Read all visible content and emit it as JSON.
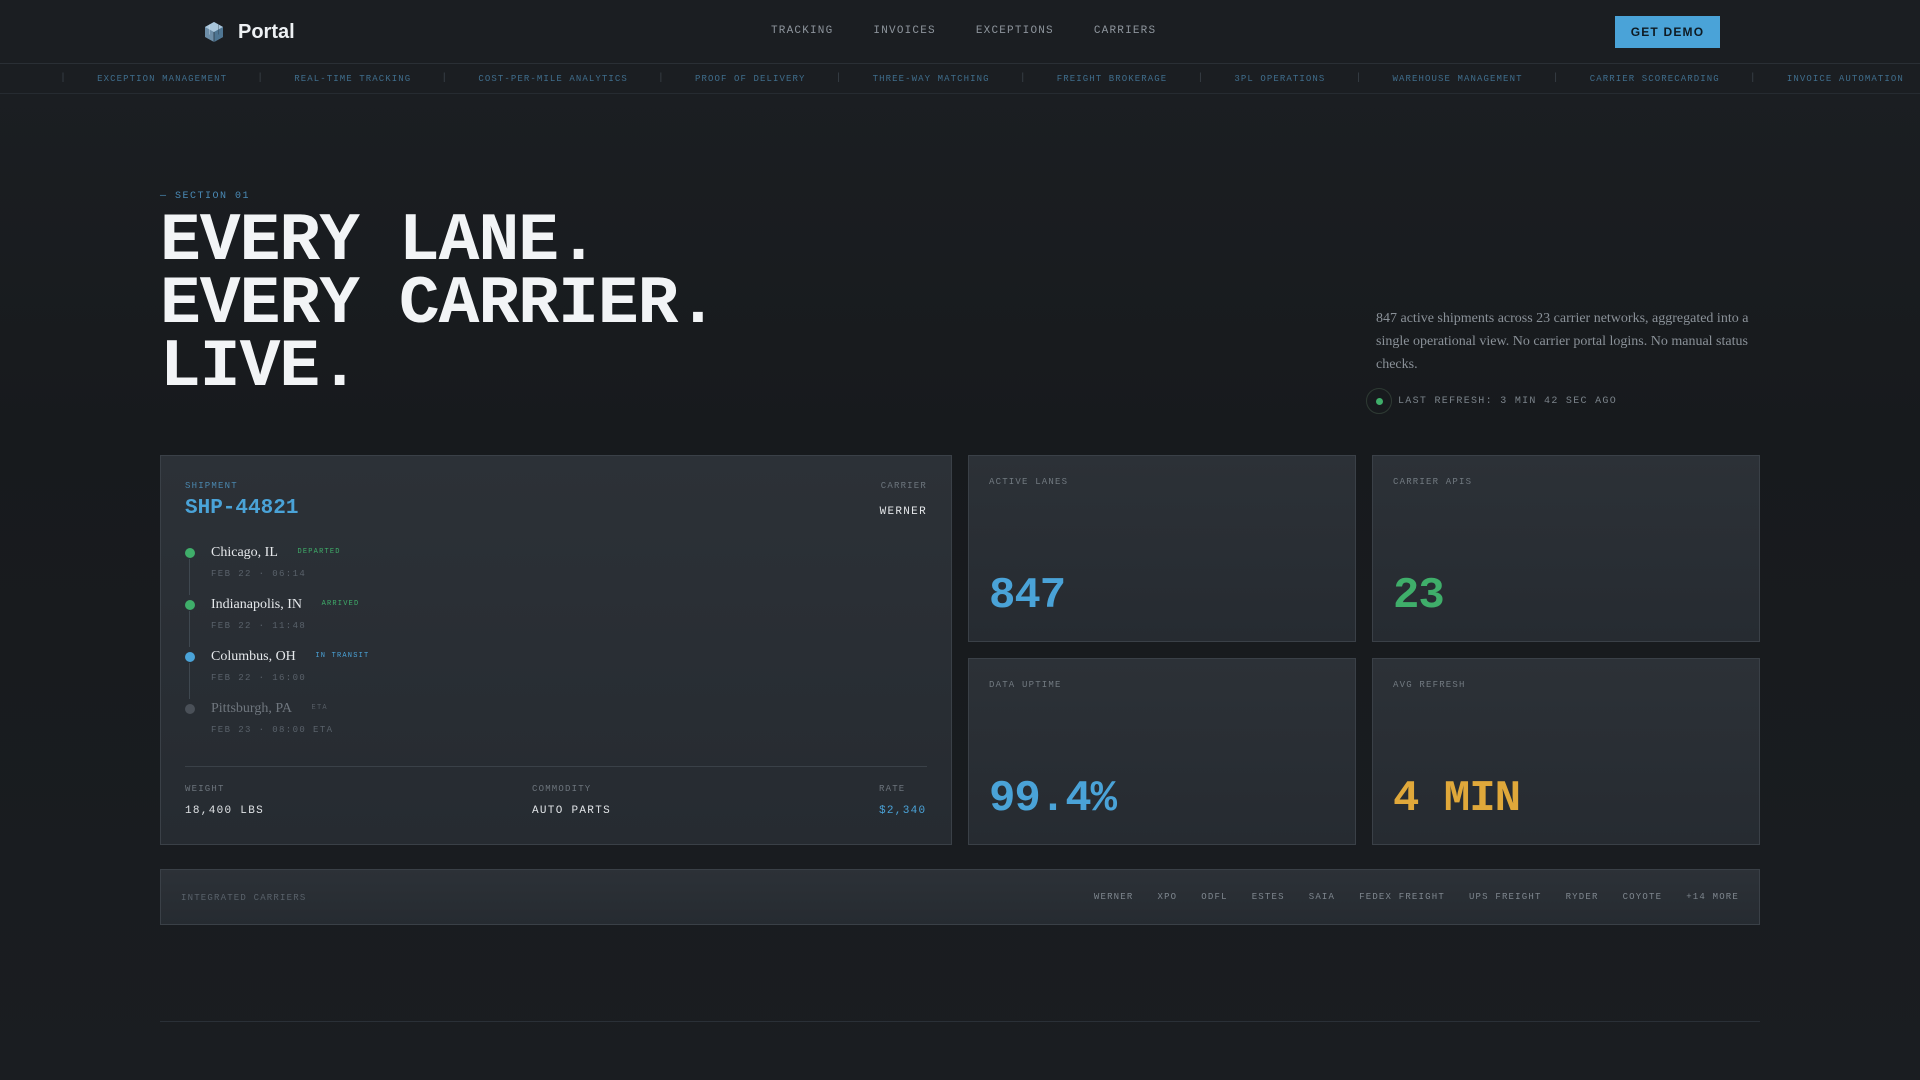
{
  "nav": {
    "brand": "Portal",
    "links": [
      "TRACKING",
      "INVOICES",
      "EXCEPTIONS",
      "CARRIERS"
    ],
    "cta": "GET DEMO"
  },
  "ticker": [
    "EXCEPTION MANAGEMENT",
    "REAL-TIME TRACKING",
    "COST-PER-MILE ANALYTICS",
    "PROOF OF DELIVERY",
    "THREE-WAY MATCHING",
    "FREIGHT BROKERAGE",
    "3PL OPERATIONS",
    "WAREHOUSE MANAGEMENT",
    "CARRIER SCORECARDING",
    "INVOICE AUTOMATION"
  ],
  "hero": {
    "section": "— SECTION 01",
    "lines": [
      "EVERY LANE.",
      "EVERY CARRIER.",
      "LIVE."
    ],
    "description": "847 active shipments across 23 carrier networks, aggregated into a single operational view. No carrier portal logins. No manual status checks.",
    "refresh": "LAST REFRESH: 3 MIN 42 SEC AGO"
  },
  "shipment": {
    "label": "SHIPMENT",
    "id": "SHP-44821",
    "carrier_label": "CARRIER",
    "carrier": "WERNER",
    "stops": [
      {
        "city": "Chicago, IL",
        "status": "DEPARTED",
        "time": "FEB 22 · 06:14",
        "color": "#3fae6a",
        "status_color": "#3fae6a"
      },
      {
        "city": "Indianapolis, IN",
        "status": "ARRIVED",
        "time": "FEB 22 · 11:48",
        "color": "#3fae6a",
        "status_color": "#3fae6a"
      },
      {
        "city": "Columbus, OH",
        "status": "IN TRANSIT",
        "time": "FEB 22 · 16:00",
        "color": "#4aa3d8",
        "status_color": "#4aa3d8"
      },
      {
        "city": "Pittsburgh, PA",
        "status": "ETA",
        "time": "FEB 23 · 08:00 ETA",
        "color": "#4a5058",
        "status_color": "#555c64"
      }
    ],
    "weight_label": "WEIGHT",
    "weight": "18,400 LBS",
    "commodity_label": "COMMODITY",
    "commodity": "AUTO PARTS",
    "rate_label": "RATE",
    "rate": "$2,340"
  },
  "stats": {
    "active_lanes": {
      "label": "ACTIVE LANES",
      "value": "847",
      "color": "#4aa3d8"
    },
    "carrier_apis": {
      "label": "CARRIER APIS",
      "value": "23",
      "color": "#3fae6a"
    },
    "data_uptime": {
      "label": "DATA UPTIME",
      "value": "99.4%",
      "color": "#4aa3d8"
    },
    "avg_refresh": {
      "label": "AVG REFRESH",
      "value": "4 MIN",
      "color": "#e0a83a"
    }
  },
  "carriers": {
    "label": "INTEGRATED CARRIERS",
    "list": [
      "WERNER",
      "XPO",
      "ODFL",
      "ESTES",
      "SAIA",
      "FEDEX FREIGHT",
      "UPS FREIGHT",
      "RYDER",
      "COYOTE",
      "+14 MORE"
    ]
  }
}
